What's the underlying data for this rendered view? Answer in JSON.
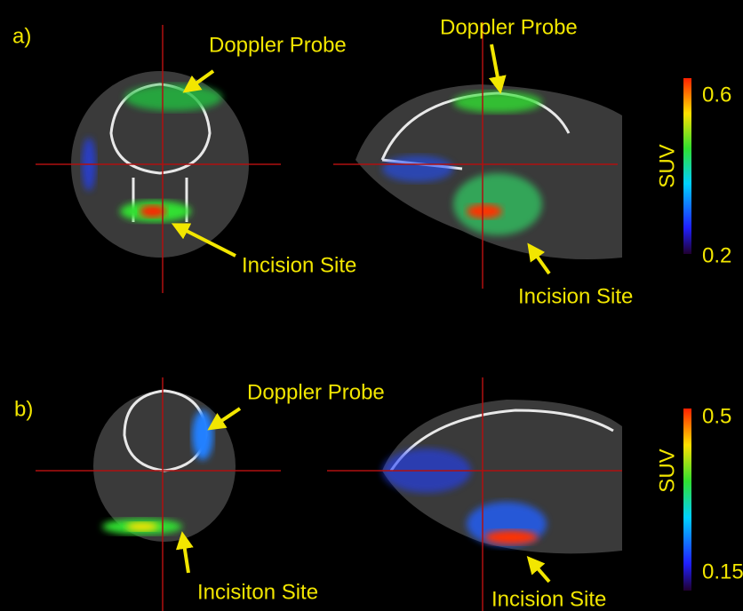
{
  "panels": [
    {
      "label": "a)",
      "left_image": {
        "probe": "Doppler Probe",
        "incision": "Incision Site"
      },
      "right_image": {
        "probe": "Doppler Probe",
        "incision": "Incision Site"
      },
      "colorbar": {
        "title": "SUV",
        "max": "0.6",
        "min": "0.2"
      }
    },
    {
      "label": "b)",
      "left_image": {
        "probe": "Doppler Probe",
        "incision": "Incisiton Site"
      },
      "right_image": {
        "incision": "Incision Site"
      },
      "colorbar": {
        "title": "SUV",
        "max": "0.5",
        "min": "0.15"
      }
    }
  ]
}
